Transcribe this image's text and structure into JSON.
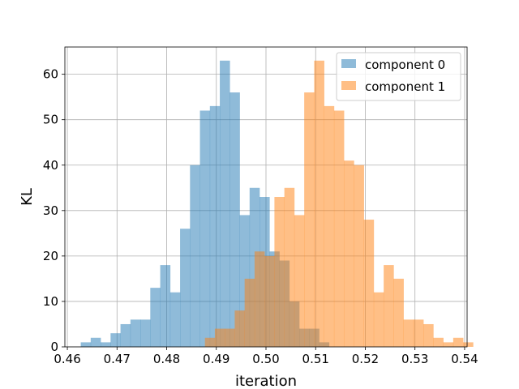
{
  "chart_data": {
    "type": "histogram",
    "title": "",
    "xlabel": "iteration",
    "ylabel": "KL",
    "xlim": [
      0.4595,
      0.5405
    ],
    "ylim": [
      0,
      66
    ],
    "xticks": [
      0.46,
      0.47,
      0.48,
      0.49,
      0.5,
      0.51,
      0.52,
      0.53,
      0.54
    ],
    "xtick_labels": [
      "0.46",
      "0.47",
      "0.48",
      "0.49",
      "0.50",
      "0.51",
      "0.52",
      "0.53",
      "0.54"
    ],
    "yticks": [
      0,
      10,
      20,
      30,
      40,
      50,
      60
    ],
    "ytick_labels": [
      "0",
      "10",
      "20",
      "30",
      "40",
      "50",
      "60"
    ],
    "grid": true,
    "legend_position": "top-right",
    "series": [
      {
        "name": "component 0",
        "color": "#1f77b4",
        "alpha": 0.5,
        "bin_start": 0.4627,
        "bin_width": 0.002,
        "counts": [
          1,
          2,
          1,
          3,
          5,
          6,
          6,
          13,
          18,
          12,
          26,
          40,
          52,
          53,
          63,
          56,
          29,
          35,
          33,
          21,
          19,
          10,
          4,
          4,
          1
        ]
      },
      {
        "name": "component 1",
        "color": "#ff7f0e",
        "alpha": 0.5,
        "bin_start": 0.4877,
        "bin_width": 0.002,
        "counts": [
          2,
          4,
          4,
          8,
          15,
          21,
          20,
          33,
          35,
          29,
          56,
          63,
          53,
          52,
          41,
          40,
          28,
          12,
          18,
          15,
          6,
          6,
          5,
          2,
          1,
          2,
          1
        ]
      }
    ]
  }
}
